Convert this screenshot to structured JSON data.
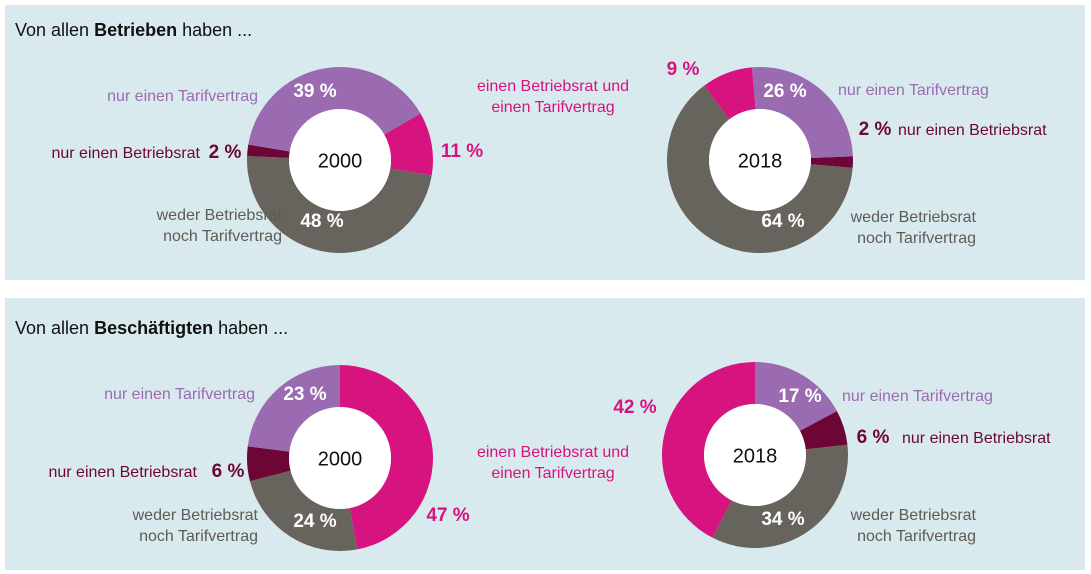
{
  "panels": [
    {
      "title": [
        "Von allen ",
        "Betrieben",
        " haben ..."
      ],
      "shared_label": "einen Betriebsrat und einen Tarifvertrag"
    },
    {
      "title": [
        "Von allen ",
        "Beschäftigten",
        " haben ..."
      ],
      "shared_label": "einen Betriebsrat und einen Tarifvertrag"
    }
  ],
  "chart_data": [
    {
      "type": "donut",
      "center_label": "2000",
      "categories": [
        "nur einen Tarifvertrag",
        "nur einen Betriebsrat",
        null,
        "weder Betriebsrat noch Tarifvertrag"
      ],
      "values": [
        39,
        2,
        11,
        48
      ],
      "value_labels": [
        "39 %",
        "2 %",
        "11 %",
        "48 %"
      ],
      "colors": [
        "#9b6bb1",
        "#6d0536",
        "#d6137f",
        "#67635d"
      ]
    },
    {
      "type": "donut",
      "center_label": "2018",
      "categories": [
        "nur einen Tarifvertrag",
        "nur einen Betriebsrat",
        null,
        "weder Betriebsrat noch Tarifvertrag"
      ],
      "values": [
        26,
        2,
        9,
        64
      ],
      "value_labels": [
        "26 %",
        "2 %",
        "9 %",
        "64 %"
      ],
      "colors": [
        "#9b6bb1",
        "#6d0536",
        "#d6137f",
        "#67635d"
      ]
    },
    {
      "type": "donut",
      "center_label": "2000",
      "categories": [
        "nur einen Tarifvertrag",
        "nur einen Betriebsrat",
        null,
        "weder Betriebsrat noch Tarifvertrag"
      ],
      "values": [
        23,
        6,
        47,
        24
      ],
      "value_labels": [
        "23 %",
        "6 %",
        "47 %",
        "24 %"
      ],
      "colors": [
        "#9b6bb1",
        "#6d0536",
        "#d6137f",
        "#67635d"
      ]
    },
    {
      "type": "donut",
      "center_label": "2018",
      "categories": [
        "nur einen Tarifvertrag",
        "nur einen Betriebsrat",
        null,
        "weder Betriebsrat noch Tarifvertrag"
      ],
      "values": [
        17,
        6,
        42,
        34
      ],
      "value_labels": [
        "17 %",
        "6 %",
        "42 %",
        "34 %"
      ],
      "colors": [
        "#9b6bb1",
        "#6d0536",
        "#d6137f",
        "#67635d"
      ]
    }
  ]
}
